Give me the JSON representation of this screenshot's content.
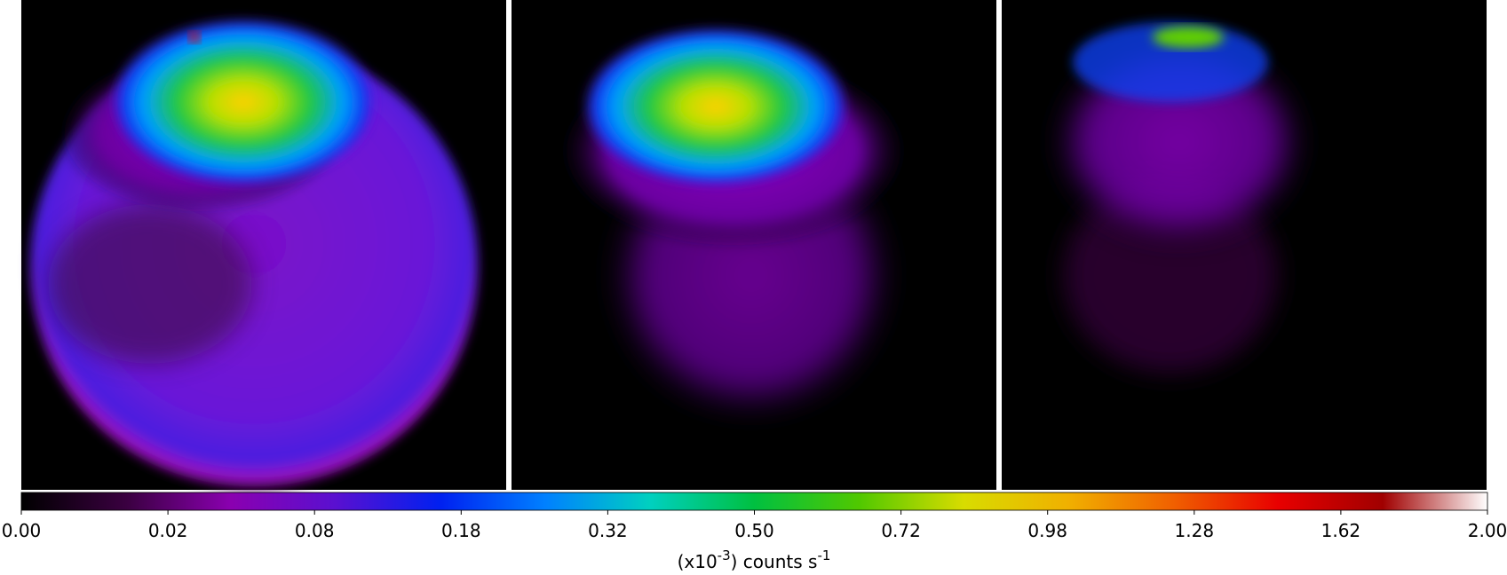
{
  "chart_data": {
    "type": "colorbar",
    "scale": "sqrt",
    "xlim": [
      0,
      2
    ],
    "xticks": [
      {
        "value": 0,
        "label": "0.00"
      },
      {
        "value": 0.02,
        "label": "0.02"
      },
      {
        "value": 0.08,
        "label": "0.08"
      },
      {
        "value": 0.18,
        "label": "0.18"
      },
      {
        "value": 0.32,
        "label": "0.32"
      },
      {
        "value": 0.5,
        "label": "0.50"
      },
      {
        "value": 0.72,
        "label": "0.72"
      },
      {
        "value": 0.98,
        "label": "0.98"
      },
      {
        "value": 1.28,
        "label": "1.28"
      },
      {
        "value": 1.62,
        "label": "1.62"
      },
      {
        "value": 2,
        "label": "2.00"
      }
    ],
    "colormap": [
      "#000000",
      "#3a0040",
      "#8a00b0",
      "#5a10d0",
      "#0020f0",
      "#0080ff",
      "#00d0c0",
      "#00c040",
      "#50c800",
      "#d8dc00",
      "#f0b000",
      "#f06000",
      "#e80000",
      "#a00000",
      "#ffffff"
    ],
    "xlabel": {
      "base": "(x10",
      "exp": "-3",
      "unit": ") counts s",
      "unit_exp": "-1"
    }
  }
}
